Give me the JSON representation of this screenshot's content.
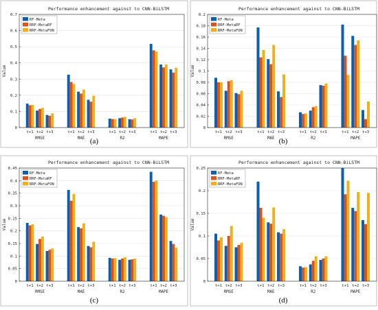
{
  "chart_data": [
    {
      "type": "bar",
      "title": "Performance enhancement against to CNN-BiLSTM",
      "caption": "(a)",
      "ylabel": "Value",
      "xlabel": "",
      "ylim": [
        0,
        0.7
      ],
      "yticks": [
        "0",
        "0.1",
        "0.2",
        "0.3",
        "0.4",
        "0.5",
        "0.6",
        "0.7"
      ],
      "groups": [
        "RMSE",
        "MAE",
        "R2",
        "MAPE"
      ],
      "categories": [
        "t+1",
        "t+2",
        "t+3"
      ],
      "legend_position": "top-left",
      "series": [
        {
          "name": "RF-Meta",
          "color": "#0a5fb0",
          "values": [
            [
              0.148,
              0.105,
              0.078
            ],
            [
              0.327,
              0.222,
              0.172
            ],
            [
              0.055,
              0.058,
              0.052
            ],
            [
              0.518,
              0.39,
              0.36
            ]
          ]
        },
        {
          "name": "RRF-MetaRF",
          "color": "#d9531e",
          "values": [
            [
              0.138,
              0.115,
              0.073
            ],
            [
              0.282,
              0.21,
              0.16
            ],
            [
              0.053,
              0.062,
              0.05
            ],
            [
              0.478,
              0.372,
              0.34
            ]
          ]
        },
        {
          "name": "RRF-MetaFON",
          "color": "#edb120",
          "values": [
            [
              0.14,
              0.122,
              0.088
            ],
            [
              0.27,
              0.235,
              0.197
            ],
            [
              0.052,
              0.066,
              0.058
            ],
            [
              0.47,
              0.39,
              0.37
            ]
          ]
        }
      ]
    },
    {
      "type": "bar",
      "title": "Performance enhancement against to CNN-BiLSTM",
      "caption": "(b)",
      "ylabel": "Value",
      "xlabel": "",
      "ylim": [
        0,
        0.2
      ],
      "yticks": [
        "0",
        "0.02",
        "0.04",
        "0.06",
        "0.08",
        "0.1",
        "0.12",
        "0.14",
        "0.16",
        "0.18",
        "0.2"
      ],
      "groups": [
        "RMSE",
        "MAE",
        "R2",
        "MAPE"
      ],
      "categories": [
        "t+1",
        "t+2",
        "t+3"
      ],
      "legend_position": "top-left",
      "series": [
        {
          "name": "RF-Meta",
          "color": "#0a5fb0",
          "values": [
            [
              0.088,
              0.065,
              0.061
            ],
            [
              0.177,
              0.121,
              0.064
            ],
            [
              0.027,
              0.03,
              0.075
            ],
            [
              0.182,
              0.162,
              0.031
            ]
          ]
        },
        {
          "name": "RRF-MetaRF",
          "color": "#d9531e",
          "values": [
            [
              0.08,
              0.082,
              0.059
            ],
            [
              0.124,
              0.112,
              0.054
            ],
            [
              0.024,
              0.036,
              0.074
            ],
            [
              0.127,
              0.146,
              0.015
            ]
          ]
        },
        {
          "name": "RRF-MetaFON",
          "color": "#edb120",
          "values": [
            [
              0.08,
              0.084,
              0.065
            ],
            [
              0.137,
              0.146,
              0.094
            ],
            [
              0.025,
              0.038,
              0.078
            ],
            [
              0.093,
              0.154,
              0.046
            ]
          ]
        }
      ]
    },
    {
      "type": "bar",
      "title": "Performance enhancement against to CNN-BiLSTM",
      "caption": "(c)",
      "ylabel": "Value",
      "xlabel": "",
      "ylim": [
        0,
        0.45
      ],
      "yticks": [
        "0",
        "0.05",
        "0.1",
        "0.15",
        "0.2",
        "0.25",
        "0.3",
        "0.35",
        "0.4",
        "0.45"
      ],
      "groups": [
        "RMSE",
        "MAE",
        "R2",
        "MAPE"
      ],
      "categories": [
        "t+1",
        "t+2",
        "t+3"
      ],
      "legend_position": "top-left",
      "series": [
        {
          "name": "RF-Meta",
          "color": "#0a5fb0",
          "values": [
            [
              0.232,
              0.148,
              0.12
            ],
            [
              0.363,
              0.215,
              0.14
            ],
            [
              0.093,
              0.085,
              0.085
            ],
            [
              0.435,
              0.265,
              0.16
            ]
          ]
        },
        {
          "name": "RRF-MetaRF",
          "color": "#d9531e",
          "values": [
            [
              0.222,
              0.168,
              0.125
            ],
            [
              0.32,
              0.21,
              0.135
            ],
            [
              0.09,
              0.09,
              0.087
            ],
            [
              0.395,
              0.26,
              0.148
            ]
          ]
        },
        {
          "name": "RRF-MetaFON",
          "color": "#edb120",
          "values": [
            [
              0.226,
              0.177,
              0.13
            ],
            [
              0.347,
              0.23,
              0.157
            ],
            [
              0.092,
              0.095,
              0.09
            ],
            [
              0.4,
              0.255,
              0.133
            ]
          ]
        }
      ]
    },
    {
      "type": "bar",
      "title": "Performance enhancement against to CNN-BiLSTM",
      "caption": "(d)",
      "ylabel": "Value",
      "xlabel": "",
      "ylim": [
        0,
        0.25
      ],
      "yticks": [
        "0",
        "0.05",
        "0.1",
        "0.15",
        "0.2",
        "0.25"
      ],
      "groups": [
        "RMSE",
        "MAE",
        "R2",
        "MAPE"
      ],
      "categories": [
        "t+1",
        "t+2",
        "t+3"
      ],
      "legend_position": "top-left",
      "series": [
        {
          "name": "RF-Meta",
          "color": "#0a5fb0",
          "values": [
            [
              0.105,
              0.078,
              0.075
            ],
            [
              0.22,
              0.13,
              0.108
            ],
            [
              0.033,
              0.037,
              0.047
            ],
            [
              0.25,
              0.162,
              0.135
            ]
          ]
        },
        {
          "name": "RRF-MetaRF",
          "color": "#d9531e",
          "values": [
            [
              0.09,
              0.1,
              0.08
            ],
            [
              0.162,
              0.127,
              0.105
            ],
            [
              0.03,
              0.045,
              0.05
            ],
            [
              0.192,
              0.155,
              0.126
            ]
          ]
        },
        {
          "name": "RRF-MetaFON",
          "color": "#edb120",
          "values": [
            [
              0.097,
              0.122,
              0.085
            ],
            [
              0.14,
              0.163,
              0.115
            ],
            [
              0.031,
              0.055,
              0.055
            ],
            [
              0.222,
              0.197,
              0.195
            ]
          ]
        }
      ]
    }
  ]
}
